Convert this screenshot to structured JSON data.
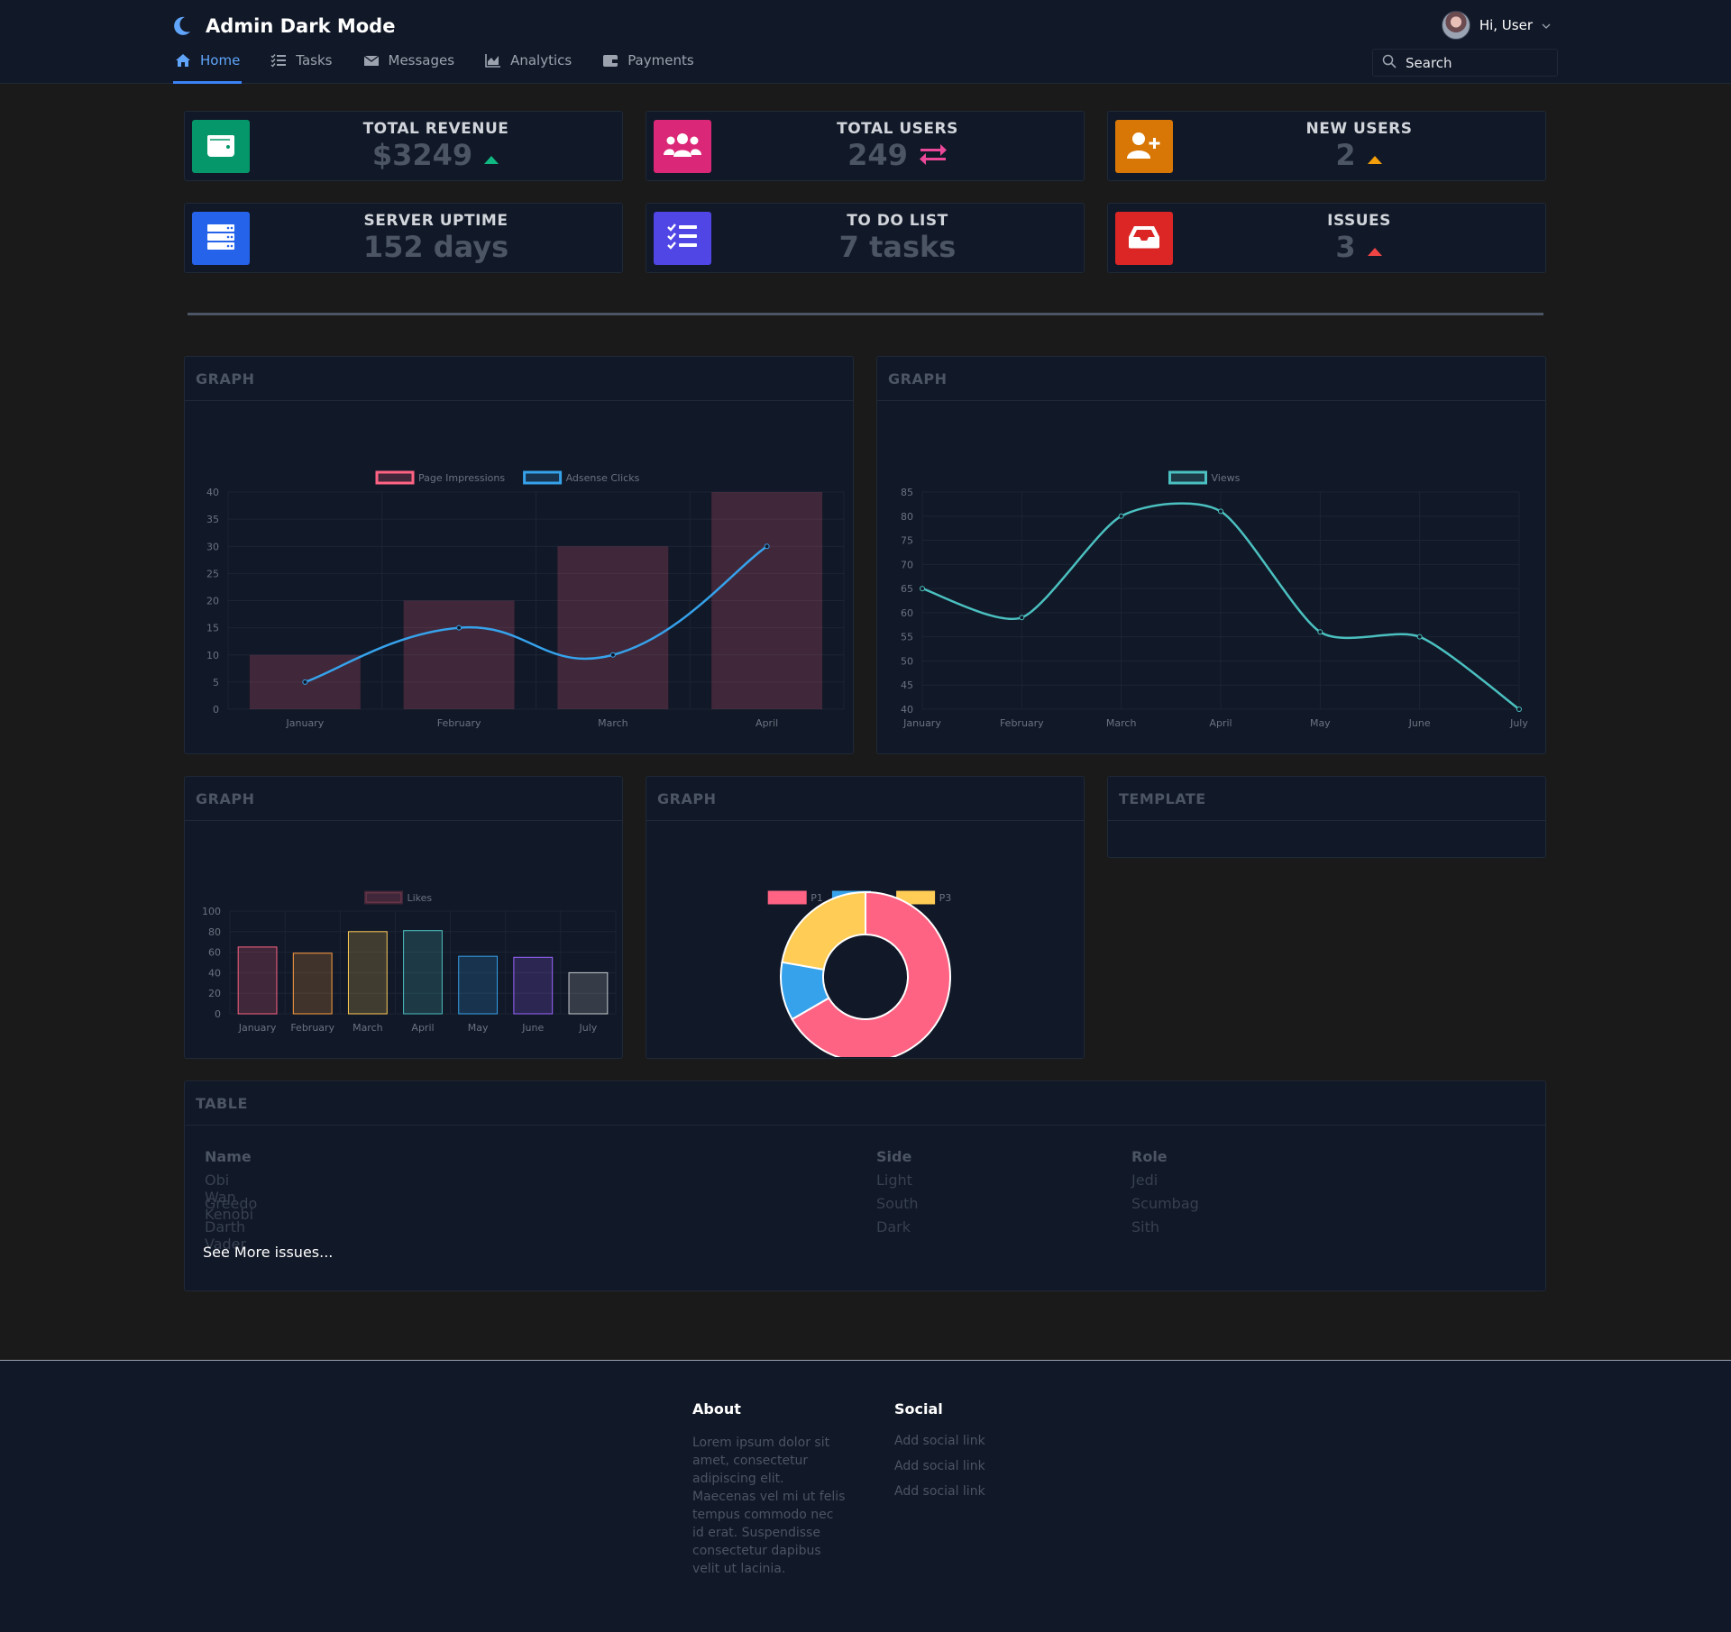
{
  "header": {
    "title": "Admin Dark Mode",
    "greeting": "Hi, User",
    "search_placeholder": "Search",
    "nav": [
      {
        "label": "Home"
      },
      {
        "label": "Tasks"
      },
      {
        "label": "Messages"
      },
      {
        "label": "Analytics"
      },
      {
        "label": "Payments"
      }
    ]
  },
  "stats": [
    {
      "label": "TOTAL REVENUE",
      "value": "$3249",
      "color": "#059669"
    },
    {
      "label": "TOTAL USERS",
      "value": "249",
      "color": "#db2777"
    },
    {
      "label": "NEW USERS",
      "value": "2",
      "color": "#d97706"
    },
    {
      "label": "SERVER UPTIME",
      "value": "152 days",
      "color": "#2563eb"
    },
    {
      "label": "TO DO LIST",
      "value": "7 tasks",
      "color": "#4f46e5"
    },
    {
      "label": "ISSUES",
      "value": "3",
      "color": "#dc2626"
    }
  ],
  "panels": {
    "graph1": "GRAPH",
    "graph2": "GRAPH",
    "graph3": "GRAPH",
    "graph4": "GRAPH",
    "template": "TEMPLATE",
    "table": "TABLE"
  },
  "chart_data": [
    {
      "type": "bar",
      "categories": [
        "January",
        "February",
        "March",
        "April"
      ],
      "series": [
        {
          "name": "Page Impressions",
          "type": "bar",
          "values": [
            10,
            20,
            30,
            40
          ],
          "color": "#ff6384"
        },
        {
          "name": "Adsense Clicks",
          "type": "line",
          "values": [
            5,
            15,
            10,
            30
          ],
          "color": "#36a2eb"
        }
      ],
      "ylim": [
        0,
        40
      ],
      "yticks": [
        0,
        5,
        10,
        15,
        20,
        25,
        30,
        35,
        40
      ],
      "legend": "top"
    },
    {
      "type": "line",
      "categories": [
        "January",
        "February",
        "March",
        "April",
        "May",
        "June",
        "July"
      ],
      "series": [
        {
          "name": "Views",
          "values": [
            65,
            59,
            80,
            81,
            56,
            55,
            40
          ],
          "color": "#4bc0c0"
        }
      ],
      "ylim": [
        40,
        85
      ],
      "yticks": [
        40,
        45,
        50,
        55,
        60,
        65,
        70,
        75,
        80,
        85
      ],
      "legend": "top"
    },
    {
      "type": "bar",
      "categories": [
        "January",
        "February",
        "March",
        "April",
        "May",
        "June",
        "July"
      ],
      "series": [
        {
          "name": "Likes",
          "values": [
            65,
            59,
            80,
            81,
            56,
            55,
            40
          ]
        }
      ],
      "colors": [
        "#ff6384",
        "#ff9f40",
        "#ffcd56",
        "#4bc0c0",
        "#36a2eb",
        "#9966ff",
        "#c9cbcf"
      ],
      "ylim": [
        0,
        100
      ],
      "yticks": [
        0,
        20,
        40,
        60,
        80,
        100
      ],
      "legend": "top"
    },
    {
      "type": "pie",
      "labels": [
        "P1",
        "P2",
        "P3"
      ],
      "values": [
        300,
        50,
        100
      ],
      "colors": [
        "#ff6384",
        "#36a2eb",
        "#ffcd56"
      ],
      "legend": "top"
    }
  ],
  "table": {
    "headers": [
      "Name",
      "Side",
      "Role"
    ],
    "rows": [
      [
        "Obi Wan Kenobi",
        "Light",
        "Jedi"
      ],
      [
        "Greedo",
        "South",
        "Scumbag"
      ],
      [
        "Darth Vader",
        "Dark",
        "Sith"
      ]
    ],
    "more": "See More issues..."
  },
  "footer": {
    "about_title": "About",
    "about_text": "Lorem ipsum dolor sit amet, consectetur adipiscing elit. Maecenas vel mi ut felis tempus commodo nec id erat. Suspendisse consectetur dapibus velit ut lacinia.",
    "social_title": "Social",
    "social_links": [
      "Add social link",
      "Add social link",
      "Add social link"
    ]
  }
}
